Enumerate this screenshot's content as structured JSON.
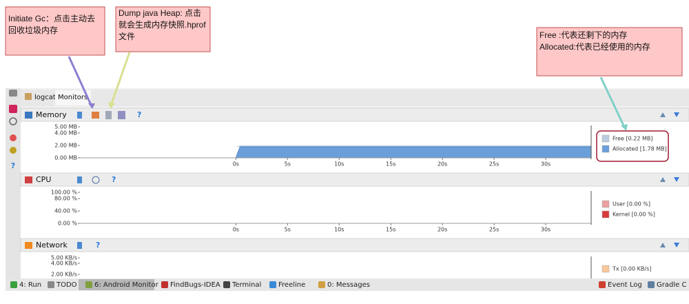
{
  "annotations": [
    {
      "lines": [
        "Initiate Gc：点击主动去",
        "回收垃圾内存"
      ]
    },
    {
      "lines": [
        "Dump java Heap: 点击",
        "就会生成内存快照.hprof",
        "文件"
      ]
    },
    {
      "lines": [
        "Free :代表还剩下的内存",
        "Allocated:代表已经使用的内存"
      ]
    }
  ],
  "tabs": [
    "logcat",
    "Monitors"
  ],
  "help_icon": "?",
  "panels": [
    {
      "title": "Memory",
      "xlim": [
        -15.1,
        34.4
      ],
      "ylim": [
        0,
        5
      ],
      "yticks": [
        {
          "value": 0,
          "label": "0.00 MB"
        },
        {
          "value": 2,
          "label": "2.00 MB"
        },
        {
          "value": 4,
          "label": "4.00 MB"
        },
        {
          "value": 5,
          "label": "5.00 MB"
        }
      ],
      "xticks": [
        {
          "value": 0,
          "label": "0s"
        },
        {
          "value": 5,
          "label": "5s"
        },
        {
          "value": 10,
          "label": "10s"
        },
        {
          "value": 15,
          "label": "15s"
        },
        {
          "value": 20,
          "label": "20s"
        },
        {
          "value": 25,
          "label": "25s"
        },
        {
          "value": 30,
          "label": "30s"
        }
      ],
      "legend": [
        {
          "label": "Free [0.22 MB]",
          "color": "#bccbe0",
          "value": 0.22
        },
        {
          "label": "Allocated [1.78 MB]",
          "color": "#6b9fd9",
          "value": 1.78
        }
      ]
    },
    {
      "title": "CPU",
      "xlim": [
        -15.1,
        34.4
      ],
      "ylim": [
        0,
        100
      ],
      "yticks": [
        {
          "value": 0,
          "label": "0.00 %"
        },
        {
          "value": 40,
          "label": "40.00 %"
        },
        {
          "value": 80,
          "label": "80.00 %"
        },
        {
          "value": 100,
          "label": "100.00 %"
        }
      ],
      "xticks": [
        {
          "value": 0,
          "label": "0s"
        },
        {
          "value": 5,
          "label": "5s"
        },
        {
          "value": 10,
          "label": "10s"
        },
        {
          "value": 15,
          "label": "15s"
        },
        {
          "value": 20,
          "label": "20s"
        },
        {
          "value": 25,
          "label": "25s"
        },
        {
          "value": 30,
          "label": "30s"
        }
      ],
      "legend": [
        {
          "label": "User [0.00 %]",
          "color": "#e8a0a0",
          "value": 0
        },
        {
          "label": "Kernel [0.00 %]",
          "color": "#d83a3a",
          "value": 0
        }
      ]
    },
    {
      "title": "Network",
      "xlim": [
        -15.1,
        34.4
      ],
      "ylim": [
        0,
        5
      ],
      "yticks": [
        {
          "value": 2,
          "label": "2.00 KB/s"
        },
        {
          "value": 4,
          "label": "4.00 KB/s"
        },
        {
          "value": 5,
          "label": "5.00 KB/s"
        }
      ],
      "xticks": [],
      "legend": [
        {
          "label": "Tx [0.00 KB/s]",
          "color": "#f8c898",
          "value": 0
        }
      ]
    }
  ],
  "toolbar": [
    "4: Run",
    "TODO",
    "6: Android Monitor",
    "FindBugs-IDEA",
    "Terminal",
    "Freeline",
    "0: Messages",
    "Event Log",
    "Gradle C"
  ]
}
